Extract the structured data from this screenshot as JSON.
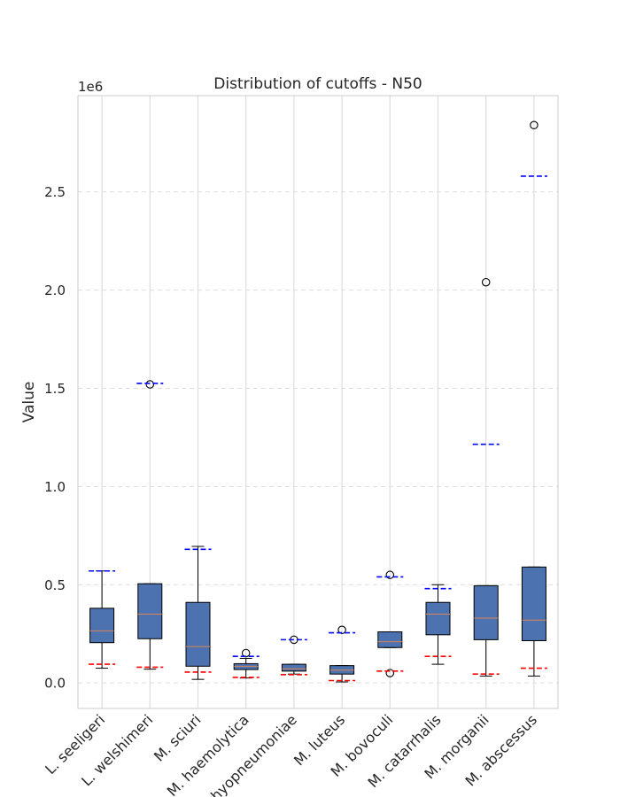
{
  "chart_data": {
    "type": "box",
    "title": "Distribution of cutoffs - N50",
    "xlabel": "",
    "ylabel": "Value",
    "y_offset_label": "1e6",
    "ylim": [
      -130000,
      2990000
    ],
    "y_ticks": [
      0,
      500000,
      1000000,
      1500000,
      2000000,
      2500000
    ],
    "y_tick_labels": [
      "0.0",
      "0.5",
      "1.0",
      "1.5",
      "2.0",
      "2.5"
    ],
    "grid": true,
    "colors": {
      "box_fill": "#4c72b0",
      "median": "#dd8452",
      "upper_cutoff": "#0000ff",
      "lower_cutoff": "#ff0000",
      "whisker": "#000000",
      "grid": "#dddddd"
    },
    "categories": [
      "L. seeligeri",
      "L. welshimeri",
      "M. sciuri",
      "M. haemolytica",
      "M. hyopneumoniae",
      "M. luteus",
      "M. bovoculi",
      "M. catarrhalis",
      "M. morganii",
      "M. abscessus"
    ],
    "boxes": [
      {
        "name": "L. seeligeri",
        "whislo": 75000,
        "q1": 205000,
        "med": 265000,
        "q3": 380000,
        "whishi": 570000,
        "fliers": [],
        "upper_cutoff": 570000,
        "lower_cutoff": 95000
      },
      {
        "name": "L. welshimeri",
        "whislo": 70000,
        "q1": 225000,
        "med": 350000,
        "q3": 505000,
        "whishi": 505000,
        "fliers": [
          1520000
        ],
        "upper_cutoff": 1525000,
        "lower_cutoff": 80000
      },
      {
        "name": "M. sciuri",
        "whislo": 18000,
        "q1": 85000,
        "med": 185000,
        "q3": 410000,
        "whishi": 695000,
        "fliers": [],
        "upper_cutoff": 680000,
        "lower_cutoff": 55000
      },
      {
        "name": "M. haemolytica",
        "whislo": 25000,
        "q1": 68000,
        "med": 85000,
        "q3": 98000,
        "whishi": 125000,
        "fliers": [
          152000
        ],
        "upper_cutoff": 135000,
        "lower_cutoff": 28000
      },
      {
        "name": "M. hyopneumoniae",
        "whislo": 45000,
        "q1": 60000,
        "med": 72000,
        "q3": 95000,
        "whishi": 95000,
        "fliers": [
          220000
        ],
        "upper_cutoff": 220000,
        "lower_cutoff": 42000
      },
      {
        "name": "M. luteus",
        "whislo": 5000,
        "q1": 45000,
        "med": 65000,
        "q3": 88000,
        "whishi": 88000,
        "fliers": [
          270000
        ],
        "upper_cutoff": 255000,
        "lower_cutoff": 12000
      },
      {
        "name": "M. bovoculi",
        "whislo": 180000,
        "q1": 180000,
        "med": 210000,
        "q3": 260000,
        "whishi": 260000,
        "fliers": [
          50000,
          550000
        ],
        "upper_cutoff": 540000,
        "lower_cutoff": 60000
      },
      {
        "name": "M. catarrhalis",
        "whislo": 95000,
        "q1": 245000,
        "med": 350000,
        "q3": 410000,
        "whishi": 500000,
        "fliers": [],
        "upper_cutoff": 480000,
        "lower_cutoff": 135000
      },
      {
        "name": "M. morganii",
        "whislo": 35000,
        "q1": 220000,
        "med": 330000,
        "q3": 495000,
        "whishi": 495000,
        "fliers": [
          2040000
        ],
        "upper_cutoff": 1215000,
        "lower_cutoff": 45000
      },
      {
        "name": "M. abscessus",
        "whislo": 35000,
        "q1": 215000,
        "med": 320000,
        "q3": 590000,
        "whishi": 590000,
        "fliers": [
          2840000
        ],
        "upper_cutoff": 2580000,
        "lower_cutoff": 75000
      }
    ]
  }
}
